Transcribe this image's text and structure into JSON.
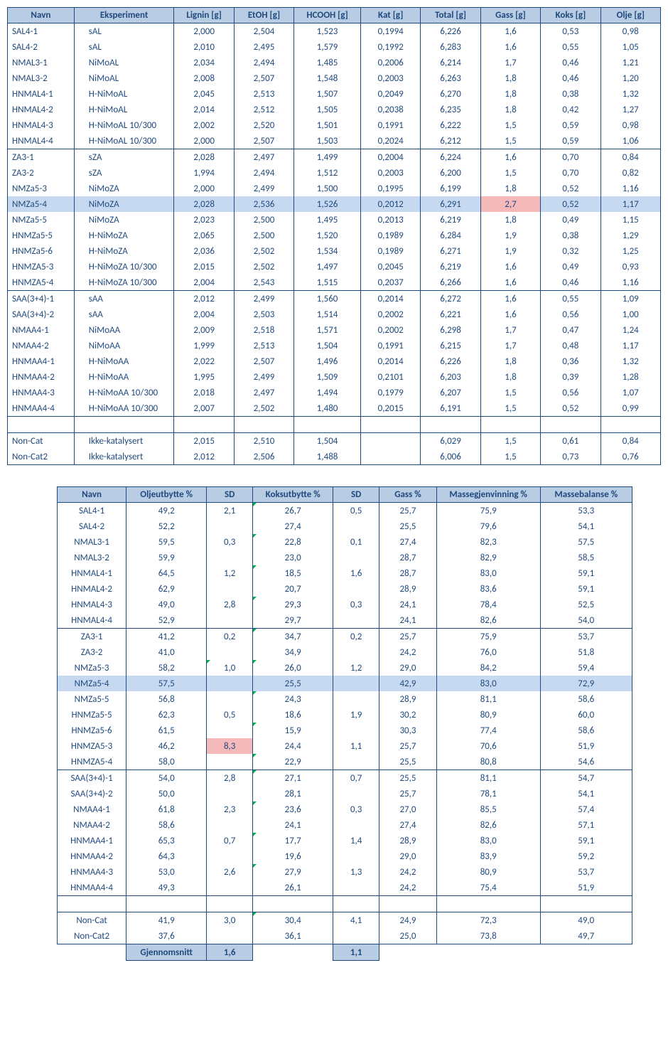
{
  "table1": {
    "headers": [
      "Navn",
      "Eksperiment",
      "Lignin [g]",
      "EtOH [g]",
      "HCOOH [g]",
      "Kat [g]",
      "Total [g]",
      "Gass [g]",
      "Koks [g]",
      "Olje [g]"
    ],
    "groups": [
      [
        [
          "SAL4-1",
          "sAL",
          "2,000",
          "2,504",
          "1,523",
          "0,1994",
          "6,226",
          "1,6",
          "0,53",
          "0,98"
        ],
        [
          "SAL4-2",
          "sAL",
          "2,010",
          "2,495",
          "1,579",
          "0,1992",
          "6,283",
          "1,6",
          "0,55",
          "1,05"
        ],
        [
          "NMAL3-1",
          "NiMoAL",
          "2,034",
          "2,494",
          "1,485",
          "0,2006",
          "6,214",
          "1,7",
          "0,46",
          "1,21"
        ],
        [
          "NMAL3-2",
          "NiMoAL",
          "2,008",
          "2,507",
          "1,548",
          "0,2003",
          "6,263",
          "1,8",
          "0,46",
          "1,20"
        ],
        [
          "HNMAL4-1",
          "H-NiMoAL",
          "2,045",
          "2,513",
          "1,507",
          "0,2049",
          "6,270",
          "1,8",
          "0,38",
          "1,32"
        ],
        [
          "HNMAL4-2",
          "H-NiMoAL",
          "2,014",
          "2,512",
          "1,505",
          "0,2038",
          "6,235",
          "1,8",
          "0,42",
          "1,27"
        ],
        [
          "HNMAL4-3",
          "H-NiMoAL 10/300",
          "2,002",
          "2,520",
          "1,501",
          "0,1991",
          "6,222",
          "1,5",
          "0,59",
          "0,98"
        ],
        [
          "HNMAL4-4",
          "H-NiMoAL 10/300",
          "2,000",
          "2,507",
          "1,503",
          "0,2024",
          "6,212",
          "1,5",
          "0,59",
          "1,06"
        ]
      ],
      [
        [
          "ZA3-1",
          "sZA",
          "2,028",
          "2,497",
          "1,499",
          "0,2004",
          "6,224",
          "1,6",
          "0,70",
          "0,84"
        ],
        [
          "ZA3-2",
          "sZA",
          "1,994",
          "2,494",
          "1,512",
          "0,2003",
          "6,200",
          "1,5",
          "0,70",
          "0,82"
        ],
        [
          "NMZa5-3",
          "NiMoZA",
          "2,000",
          "2,499",
          "1,500",
          "0,1995",
          "6,199",
          "1,8",
          "0,52",
          "1,16"
        ],
        [
          "NMZa5-4",
          "NiMoZA",
          "2,028",
          "2,536",
          "1,526",
          "0,2012",
          "6,291",
          "2,7",
          "0,52",
          "1,17"
        ],
        [
          "NMZa5-5",
          "NiMoZA",
          "2,023",
          "2,500",
          "1,495",
          "0,2013",
          "6,219",
          "1,8",
          "0,49",
          "1,15"
        ],
        [
          "HNMZa5-5",
          "H-NiMoZA",
          "2,065",
          "2,500",
          "1,520",
          "0,1989",
          "6,284",
          "1,9",
          "0,38",
          "1,29"
        ],
        [
          "HNMZa5-6",
          "H-NiMoZA",
          "2,036",
          "2,502",
          "1,534",
          "0,1989",
          "6,271",
          "1,9",
          "0,32",
          "1,25"
        ],
        [
          "HNMZA5-3",
          "H-NiMoZA 10/300",
          "2,015",
          "2,502",
          "1,497",
          "0,2045",
          "6,219",
          "1,6",
          "0,49",
          "0,93"
        ],
        [
          "HNMZA5-4",
          "H-NiMoZA 10/300",
          "2,004",
          "2,543",
          "1,515",
          "0,2037",
          "6,266",
          "1,6",
          "0,46",
          "1,16"
        ]
      ],
      [
        [
          "SAA(3+4)-1",
          "sAA",
          "2,012",
          "2,499",
          "1,560",
          "0,2014",
          "6,272",
          "1,6",
          "0,55",
          "1,09"
        ],
        [
          "SAA(3+4)-2",
          "sAA",
          "2,004",
          "2,503",
          "1,514",
          "0,2002",
          "6,221",
          "1,6",
          "0,56",
          "1,00"
        ],
        [
          "NMAA4-1",
          "NiMoAA",
          "2,009",
          "2,518",
          "1,571",
          "0,2002",
          "6,298",
          "1,7",
          "0,47",
          "1,24"
        ],
        [
          "NMAA4-2",
          "NiMoAA",
          "1,999",
          "2,513",
          "1,504",
          "0,1991",
          "6,215",
          "1,7",
          "0,48",
          "1,17"
        ],
        [
          "HNMAA4-1",
          "H-NiMoAA",
          "2,022",
          "2,507",
          "1,496",
          "0,2014",
          "6,226",
          "1,8",
          "0,36",
          "1,32"
        ],
        [
          "HNMAA4-2",
          "H-NiMoAA",
          "1,995",
          "2,499",
          "1,509",
          "0,2101",
          "6,203",
          "1,8",
          "0,39",
          "1,28"
        ],
        [
          "HNMAA4-3",
          "H-NiMoAA 10/300",
          "2,018",
          "2,497",
          "1,494",
          "0,1979",
          "6,207",
          "1,5",
          "0,56",
          "1,07"
        ],
        [
          "HNMAA4-4",
          "H-NiMoAA 10/300",
          "2,007",
          "2,502",
          "1,480",
          "0,2015",
          "6,191",
          "1,5",
          "0,52",
          "0,99"
        ]
      ]
    ],
    "noncat": [
      [
        "Non-Cat",
        "Ikke-katalysert",
        "2,015",
        "2,510",
        "1,504",
        "",
        "6,029",
        "1,5",
        "0,61",
        "0,84"
      ],
      [
        "Non-Cat2",
        "Ikke-katalysert",
        "2,012",
        "2,506",
        "1,488",
        "",
        "6,006",
        "1,5",
        "0,73",
        "0,76"
      ]
    ],
    "highlight_row": {
      "group": 1,
      "row": 3,
      "pink_col": 7
    }
  },
  "table2": {
    "headers": [
      "Navn",
      "Oljeutbytte %",
      "SD",
      "Koksutbytte %",
      "SD",
      "Gass %",
      "Massegjenvinning %",
      "Massebalanse %"
    ],
    "groups": [
      [
        [
          "SAL4-1",
          "49,2",
          "2,1",
          "26,7",
          "0,5",
          "25,7",
          "75,9",
          "53,3"
        ],
        [
          "SAL4-2",
          "52,2",
          "",
          "27,4",
          "",
          "25,5",
          "79,6",
          "54,1"
        ],
        [
          "NMAL3-1",
          "59,5",
          "0,3",
          "22,8",
          "0,1",
          "27,4",
          "82,3",
          "57,5"
        ],
        [
          "NMAL3-2",
          "59,9",
          "",
          "23,0",
          "",
          "28,7",
          "82,9",
          "58,5"
        ],
        [
          "HNMAL4-1",
          "64,5",
          "1,2",
          "18,5",
          "1,6",
          "28,7",
          "83,0",
          "59,1"
        ],
        [
          "HNMAL4-2",
          "62,9",
          "",
          "20,7",
          "",
          "28,9",
          "83,6",
          "59,1"
        ],
        [
          "HNMAL4-3",
          "49,0",
          "2,8",
          "29,3",
          "0,3",
          "24,1",
          "78,4",
          "52,5"
        ],
        [
          "HNMAL4-4",
          "52,9",
          "",
          "29,7",
          "",
          "24,1",
          "82,6",
          "54,0"
        ]
      ],
      [
        [
          "ZA3-1",
          "41,2",
          "0,2",
          "34,7",
          "0,2",
          "25,7",
          "75,9",
          "53,7"
        ],
        [
          "ZA3-2",
          "41,0",
          "",
          "34,9",
          "",
          "24,2",
          "76,0",
          "51,8"
        ],
        [
          "NMZa5-3",
          "58,2",
          "1,0",
          "26,0",
          "1,2",
          "29,0",
          "84,2",
          "59,4"
        ],
        [
          "NMZa5-4",
          "57,5",
          "",
          "25,5",
          "",
          "42,9",
          "83,0",
          "72,9"
        ],
        [
          "NMZa5-5",
          "56,8",
          "",
          "24,3",
          "",
          "28,9",
          "81,1",
          "58,6"
        ],
        [
          "HNMZa5-5",
          "62,3",
          "0,5",
          "18,6",
          "1,9",
          "30,2",
          "80,9",
          "60,0"
        ],
        [
          "HNMZa5-6",
          "61,5",
          "",
          "15,9",
          "",
          "30,3",
          "77,4",
          "58,6"
        ],
        [
          "HNMZA5-3",
          "46,2",
          "8,3",
          "24,4",
          "1,1",
          "25,7",
          "70,6",
          "51,9"
        ],
        [
          "HNMZA5-4",
          "58,0",
          "",
          "22,9",
          "",
          "25,5",
          "80,8",
          "54,6"
        ]
      ],
      [
        [
          "SAA(3+4)-1",
          "54,0",
          "2,8",
          "27,1",
          "0,7",
          "25,5",
          "81,1",
          "54,7"
        ],
        [
          "SAA(3+4)-2",
          "50,0",
          "",
          "28,1",
          "",
          "25,7",
          "78,1",
          "54,1"
        ],
        [
          "NMAA4-1",
          "61,8",
          "2,3",
          "23,6",
          "0,3",
          "27,0",
          "85,5",
          "57,4"
        ],
        [
          "NMAA4-2",
          "58,6",
          "",
          "24,1",
          "",
          "27,4",
          "82,6",
          "57,1"
        ],
        [
          "HNMAA4-1",
          "65,3",
          "0,7",
          "17,7",
          "1,4",
          "28,9",
          "83,0",
          "59,1"
        ],
        [
          "HNMAA4-2",
          "64,3",
          "",
          "19,6",
          "",
          "29,0",
          "83,9",
          "59,2"
        ],
        [
          "HNMAA4-3",
          "53,0",
          "2,6",
          "27,9",
          "1,3",
          "24,2",
          "80,9",
          "53,7"
        ],
        [
          "HNMAA4-4",
          "49,3",
          "",
          "26,1",
          "",
          "24,2",
          "75,4",
          "51,9"
        ]
      ]
    ],
    "noncat": [
      [
        "Non-Cat",
        "41,9",
        "3,0",
        "30,4",
        "4,1",
        "24,9",
        "72,3",
        "49,0"
      ],
      [
        "Non-Cat2",
        "37,6",
        "",
        "36,1",
        "",
        "25,0",
        "73,8",
        "49,7"
      ]
    ],
    "highlight_row": {
      "group": 1,
      "row": 3
    },
    "pink_cell": {
      "group": 1,
      "row": 7,
      "col": 2
    },
    "tick_cols_even": {
      "2": true,
      "3": true
    },
    "avg_label": "Gjennomsnitt",
    "avg_sd1": "1,6",
    "avg_sd2": "1,1"
  },
  "col_widths_t1": [
    "10%",
    "15%",
    "9%",
    "9%",
    "10%",
    "9%",
    "9%",
    "9%",
    "9%",
    "9%"
  ],
  "col_widths_t2": [
    "12%",
    "14%",
    "8%",
    "14%",
    "8%",
    "10%",
    "18%",
    "16%"
  ]
}
